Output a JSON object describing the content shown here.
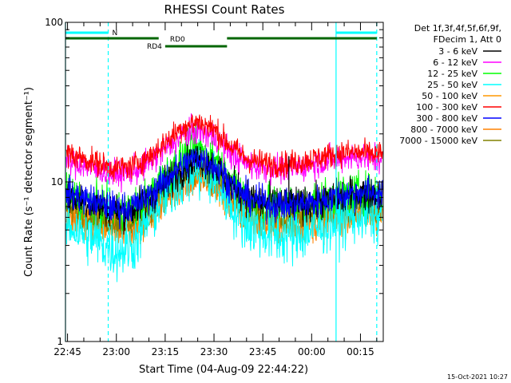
{
  "chart_data": {
    "type": "line",
    "title": "RHESSI Count Rates",
    "xlabel": "Start Time (04-Aug-09 22:44:22)",
    "ylabel": "Count Rate (s⁻¹ detector segment⁻¹)",
    "y_scale": "log",
    "ylim": [
      1,
      100
    ],
    "y_ticks": [
      "1",
      "10",
      "100"
    ],
    "xlim": [
      "22:44:22",
      "00:22:00"
    ],
    "x_ticks": [
      "22:45",
      "23:00",
      "23:15",
      "23:30",
      "23:45",
      "00:00",
      "00:15"
    ],
    "legend_header": [
      "Det 1f,3f,4f,5f,6f,9f,",
      "FDecim 1, Att 0"
    ],
    "legend_position": "right",
    "date_stamp": "15-Oct-2021 10:27",
    "series": [
      {
        "name": "3 - 6 keV",
        "color": "#000000",
        "x": [
          "22:44:22",
          "22:55",
          "23:00",
          "23:05",
          "23:10",
          "23:15",
          "23:20",
          "23:25",
          "23:30",
          "23:35",
          "23:40",
          "23:45",
          "23:50",
          "23:55",
          "00:00",
          "00:05",
          "00:10",
          "00:15",
          "00:22"
        ],
        "y": [
          8.3,
          7.1,
          6.6,
          6.7,
          7.8,
          9.8,
          12.0,
          14.0,
          12.8,
          9.9,
          8.0,
          7.4,
          7.3,
          7.2,
          7.4,
          7.7,
          8.1,
          8.5,
          8.3
        ]
      },
      {
        "name": "6 - 12 keV",
        "color": "#ff00ff",
        "x": [
          "22:44:22",
          "22:55",
          "23:00",
          "23:05",
          "23:10",
          "23:15",
          "23:20",
          "23:25",
          "23:30",
          "23:35",
          "23:40",
          "23:45",
          "23:50",
          "23:55",
          "00:00",
          "00:05",
          "00:10",
          "00:15",
          "00:22"
        ],
        "y": [
          13.6,
          11.8,
          11.1,
          11.6,
          13.2,
          16.0,
          19.3,
          21.0,
          19.3,
          15.2,
          13.0,
          12.3,
          12.0,
          12.3,
          12.9,
          13.6,
          14.3,
          14.3,
          13.9
        ]
      },
      {
        "name": "12 - 25 keV",
        "color": "#00ff00",
        "x": [
          "22:44:22",
          "22:55",
          "23:00",
          "23:05",
          "23:10",
          "23:15",
          "23:20",
          "23:25",
          "23:30",
          "23:35",
          "23:40",
          "23:45",
          "23:50",
          "23:55",
          "00:00",
          "00:05",
          "00:10",
          "00:15",
          "00:22"
        ],
        "y": [
          8.5,
          7.1,
          6.6,
          6.8,
          8.2,
          10.8,
          14.0,
          16.5,
          14.5,
          10.4,
          8.0,
          7.4,
          7.2,
          7.3,
          7.5,
          7.9,
          8.4,
          8.7,
          8.5
        ]
      },
      {
        "name": "25 - 50 keV",
        "color": "#00ffff",
        "x": [
          "22:44:22",
          "22:55",
          "23:00",
          "23:05",
          "23:10",
          "23:15",
          "23:20",
          "23:25",
          "23:30",
          "23:35",
          "23:40",
          "23:45",
          "23:50",
          "23:55",
          "00:00",
          "00:05",
          "00:10",
          "00:15",
          "00:22"
        ],
        "y": [
          5.5,
          4.2,
          3.7,
          4.0,
          5.8,
          8.3,
          10.5,
          11.5,
          10.2,
          7.3,
          5.5,
          4.9,
          4.6,
          4.6,
          5.0,
          5.5,
          6.0,
          6.3,
          6.1
        ]
      },
      {
        "name": "50 - 100 keV",
        "color": "#ff9900",
        "x": [
          "22:44:22",
          "22:55",
          "23:00",
          "23:05",
          "23:10",
          "23:15",
          "23:20",
          "23:25",
          "23:30",
          "23:35",
          "23:40",
          "23:45",
          "23:50",
          "23:55",
          "00:00",
          "00:05",
          "00:10",
          "00:15",
          "00:22"
        ],
        "y": [
          6.4,
          5.6,
          5.3,
          5.5,
          6.5,
          8.3,
          10.2,
          11.2,
          10.2,
          7.9,
          6.3,
          5.8,
          5.6,
          5.6,
          5.8,
          6.1,
          6.4,
          6.6,
          6.4
        ]
      },
      {
        "name": "100 - 300 keV",
        "color": "#ff0000",
        "x": [
          "22:44:22",
          "22:55",
          "23:00",
          "23:05",
          "23:10",
          "23:15",
          "23:20",
          "23:25",
          "23:30",
          "23:35",
          "23:40",
          "23:45",
          "23:50",
          "23:55",
          "00:00",
          "00:05",
          "00:10",
          "00:15",
          "00:22"
        ],
        "y": [
          15.2,
          13.0,
          12.1,
          12.6,
          14.4,
          17.6,
          21.8,
          24.0,
          21.5,
          16.8,
          14.0,
          13.2,
          12.9,
          13.2,
          13.9,
          14.6,
          15.3,
          15.2,
          14.8
        ]
      },
      {
        "name": "300 - 800 keV",
        "color": "#0000ff",
        "x": [
          "22:44:22",
          "22:55",
          "23:00",
          "23:05",
          "23:10",
          "23:15",
          "23:20",
          "23:25",
          "23:30",
          "23:35",
          "23:40",
          "23:45",
          "23:50",
          "23:55",
          "00:00",
          "00:05",
          "00:10",
          "00:15",
          "00:22"
        ],
        "y": [
          8.6,
          7.3,
          6.8,
          7.0,
          8.1,
          10.3,
          12.6,
          14.4,
          12.8,
          9.8,
          8.0,
          7.4,
          7.2,
          7.2,
          7.4,
          7.8,
          8.3,
          8.7,
          8.5
        ]
      },
      {
        "name": "800 - 7000 keV",
        "color": "#ff8000",
        "x": [
          "22:44:22",
          "22:55",
          "23:00",
          "23:05",
          "23:10",
          "23:15",
          "23:20",
          "23:25",
          "23:30",
          "23:35",
          "23:40",
          "23:45",
          "23:50",
          "23:55",
          "00:00",
          "00:05",
          "00:10",
          "00:15",
          "00:22"
        ],
        "y": [
          6.1,
          5.3,
          5.0,
          5.2,
          6.1,
          7.8,
          9.5,
          10.5,
          9.5,
          7.3,
          5.9,
          5.4,
          5.2,
          5.2,
          5.4,
          5.7,
          6.0,
          6.2,
          6.0
        ]
      },
      {
        "name": "7000 - 15000 keV",
        "color": "#808000",
        "x": [
          "22:44:22",
          "22:55",
          "23:00",
          "23:05",
          "23:10",
          "23:15",
          "23:20",
          "23:25",
          "23:30",
          "23:35",
          "23:40",
          "23:45",
          "23:50",
          "23:55",
          "00:00",
          "00:05",
          "00:10",
          "00:15",
          "00:22"
        ],
        "y": [
          7.0,
          6.0,
          5.6,
          5.8,
          6.8,
          8.6,
          10.6,
          12.0,
          10.8,
          8.4,
          6.7,
          6.2,
          6.0,
          6.0,
          6.2,
          6.5,
          6.9,
          7.1,
          6.9
        ]
      }
    ],
    "annotations": {
      "attenuator_label": "N",
      "rd_labels": [
        "RD0",
        "RD4"
      ],
      "night_intervals": [
        [
          "22:44:22",
          "22:57:30"
        ],
        [
          "00:07:30",
          "00:20:00"
        ]
      ],
      "rd0_intervals": [
        [
          "22:44:22",
          "23:13:00"
        ],
        [
          "23:34:00",
          "00:20:00"
        ]
      ],
      "rd4_intervals": [
        [
          "23:15:00",
          "23:34:00"
        ]
      ],
      "spike": {
        "x": "23:53:00",
        "y": 14.5
      },
      "interval_color": "#00ffff",
      "rd_color": "#006600"
    }
  }
}
